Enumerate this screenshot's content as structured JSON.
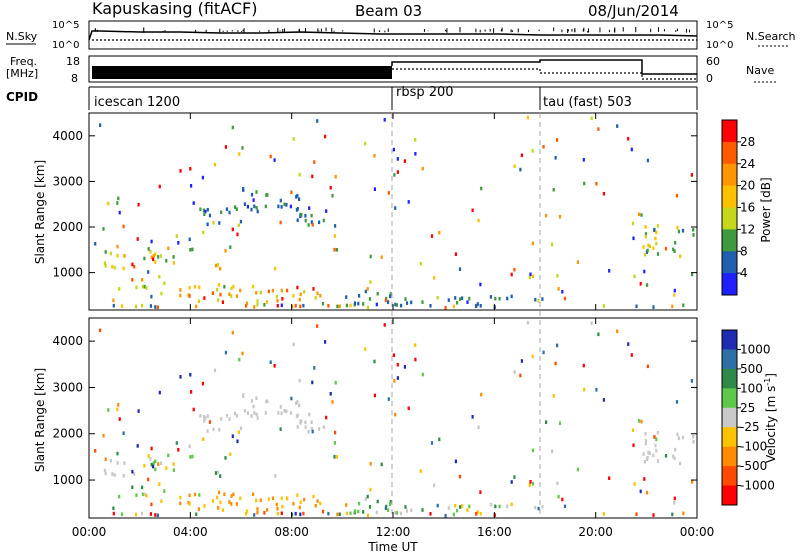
{
  "header": {
    "station": "Kapuskasing (fitACF)",
    "beam": "Beam 03",
    "date": "08/Jun/2014"
  },
  "strips": {
    "nsky_label": "N.Sky",
    "nsky_ticks": [
      "10^5",
      "10^0"
    ],
    "nsearch_label": "N.Search",
    "nsearch_ticks": [
      "10^5",
      "10^0"
    ],
    "freq_label": "Freq.",
    "freq_unit": "[MHz]",
    "freq_ticks": [
      "18",
      "8"
    ],
    "nave_label": "Nave",
    "nave_ticks": [
      "60",
      "0"
    ],
    "cpid_label": "CPID",
    "cpid_segments": [
      {
        "label": "icescan 1200",
        "start": 0,
        "end": 12
      },
      {
        "label": "rbsp 200",
        "start": 12,
        "end": 18
      },
      {
        "label": "tau (fast) 503",
        "start": 18,
        "end": 24
      }
    ]
  },
  "xaxis": {
    "label": "Time UT",
    "ticks": [
      "00:00",
      "04:00",
      "08:00",
      "12:00",
      "16:00",
      "20:00",
      "00:00"
    ]
  },
  "colorbars": {
    "power": {
      "label": "Power [dB]",
      "ticks": [
        "28",
        "24",
        "20",
        "16",
        "12",
        "8",
        "4"
      ],
      "colors": [
        "#ff0000",
        "#ff5a00",
        "#ff9600",
        "#ffc000",
        "#c6d61a",
        "#3f9a3f",
        "#1f5fae",
        "#1f1fff"
      ]
    },
    "velocity": {
      "label": "Velocity [m s",
      "label_sup": "-1",
      "label_end": "]",
      "ticks": [
        "1000",
        "500",
        "100",
        "25",
        "-25",
        "-100",
        "-500",
        "-1000"
      ],
      "colors": [
        "#1f2bb0",
        "#2f6fa8",
        "#2f8a4a",
        "#5fc84a",
        "#c8c8c8",
        "#ffc200",
        "#ff8c00",
        "#ff4a00",
        "#ff0000"
      ]
    }
  },
  "chart_data": [
    {
      "type": "heatmap",
      "title": "Power",
      "ylabel": "Slant Range [km]",
      "xlabel": "",
      "xlim": [
        0,
        24
      ],
      "ylim": [
        180,
        4500
      ],
      "y_ticks": [
        1000,
        2000,
        3000,
        4000
      ],
      "ground_scatter_color": "#888888",
      "regions": [
        {
          "t0": 0.0,
          "t1": 1.8,
          "r0": 1000,
          "r1": 1450,
          "v0": 0.35,
          "v1": 0.8
        },
        {
          "t0": 1.8,
          "t1": 3.4,
          "r0": 1150,
          "r1": 1550,
          "v0": 0.3,
          "v1": 0.7
        },
        {
          "t0": 3.4,
          "t1": 4.3,
          "r0": 1450,
          "r1": 2000,
          "v0": 0.15,
          "v1": 0.5
        },
        {
          "t0": 4.3,
          "t1": 6.0,
          "r0": 1900,
          "r1": 2400,
          "v0": 0.1,
          "v1": 0.4
        },
        {
          "t0": 6.0,
          "t1": 8.2,
          "r0": 2300,
          "r1": 2800,
          "v0": 0.1,
          "v1": 0.35
        },
        {
          "t0": 8.0,
          "t1": 9.3,
          "r0": 1950,
          "r1": 2600,
          "v0": 0.1,
          "v1": 0.35
        },
        {
          "t0": 1.0,
          "t1": 3.0,
          "r0": 600,
          "r1": 820,
          "v0": 0.3,
          "v1": 0.8
        },
        {
          "t0": 3.4,
          "t1": 9.5,
          "r0": 220,
          "r1": 700,
          "v0": 0.35,
          "v1": 1.0
        },
        {
          "t0": 9.5,
          "t1": 12.0,
          "r0": 230,
          "r1": 560,
          "v0": 0.1,
          "v1": 0.4
        },
        {
          "t0": 12.0,
          "t1": 18.0,
          "r0": 200,
          "r1": 450,
          "v0": 0.1,
          "v1": 0.4
        },
        {
          "t0": 21.8,
          "t1": 24.0,
          "r0": 1300,
          "r1": 2000,
          "v0": 0.1,
          "v1": 0.6
        },
        {
          "t0": 0.0,
          "t1": 24.0,
          "r0": 190,
          "r1": 260,
          "v0": 0.1,
          "v1": 0.9
        }
      ]
    },
    {
      "type": "heatmap",
      "title": "Velocity",
      "ylabel": "Slant Range [km]",
      "xlabel": "Time UT",
      "xlim": [
        0,
        24
      ],
      "ylim": [
        180,
        4500
      ],
      "y_ticks": [
        1000,
        2000,
        3000,
        4000
      ],
      "ground_scatter_color": "#c8c8c8",
      "regions": [
        {
          "t0": 0.0,
          "t1": 1.8,
          "r0": 1000,
          "r1": 1450,
          "v0": 0.45,
          "v1": 0.55
        },
        {
          "t0": 1.8,
          "t1": 3.4,
          "r0": 1150,
          "r1": 1550,
          "v0": 0.4,
          "v1": 0.7
        },
        {
          "t0": 3.4,
          "t1": 4.3,
          "r0": 1450,
          "r1": 2000,
          "v0": 0.5,
          "v1": 0.75
        },
        {
          "t0": 4.3,
          "t1": 6.0,
          "r0": 1900,
          "r1": 2400,
          "v0": 0.45,
          "v1": 0.55
        },
        {
          "t0": 6.0,
          "t1": 8.2,
          "r0": 2300,
          "r1": 2800,
          "v0": 0.45,
          "v1": 0.55
        },
        {
          "t0": 8.0,
          "t1": 9.3,
          "r0": 1950,
          "r1": 2600,
          "v0": 0.45,
          "v1": 0.55
        },
        {
          "t0": 1.0,
          "t1": 3.0,
          "r0": 600,
          "r1": 820,
          "v0": 0.55,
          "v1": 0.75
        },
        {
          "t0": 3.4,
          "t1": 9.5,
          "r0": 220,
          "r1": 700,
          "v0": 0.2,
          "v1": 0.45
        },
        {
          "t0": 9.5,
          "t1": 12.0,
          "r0": 230,
          "r1": 560,
          "v0": 0.5,
          "v1": 0.8
        },
        {
          "t0": 12.0,
          "t1": 18.0,
          "r0": 200,
          "r1": 450,
          "v0": 0.3,
          "v1": 0.8
        },
        {
          "t0": 21.8,
          "t1": 24.0,
          "r0": 1300,
          "r1": 2000,
          "v0": 0.45,
          "v1": 0.55
        },
        {
          "t0": 0.0,
          "t1": 24.0,
          "r0": 190,
          "r1": 260,
          "v0": 0.0,
          "v1": 1.0
        }
      ]
    }
  ]
}
